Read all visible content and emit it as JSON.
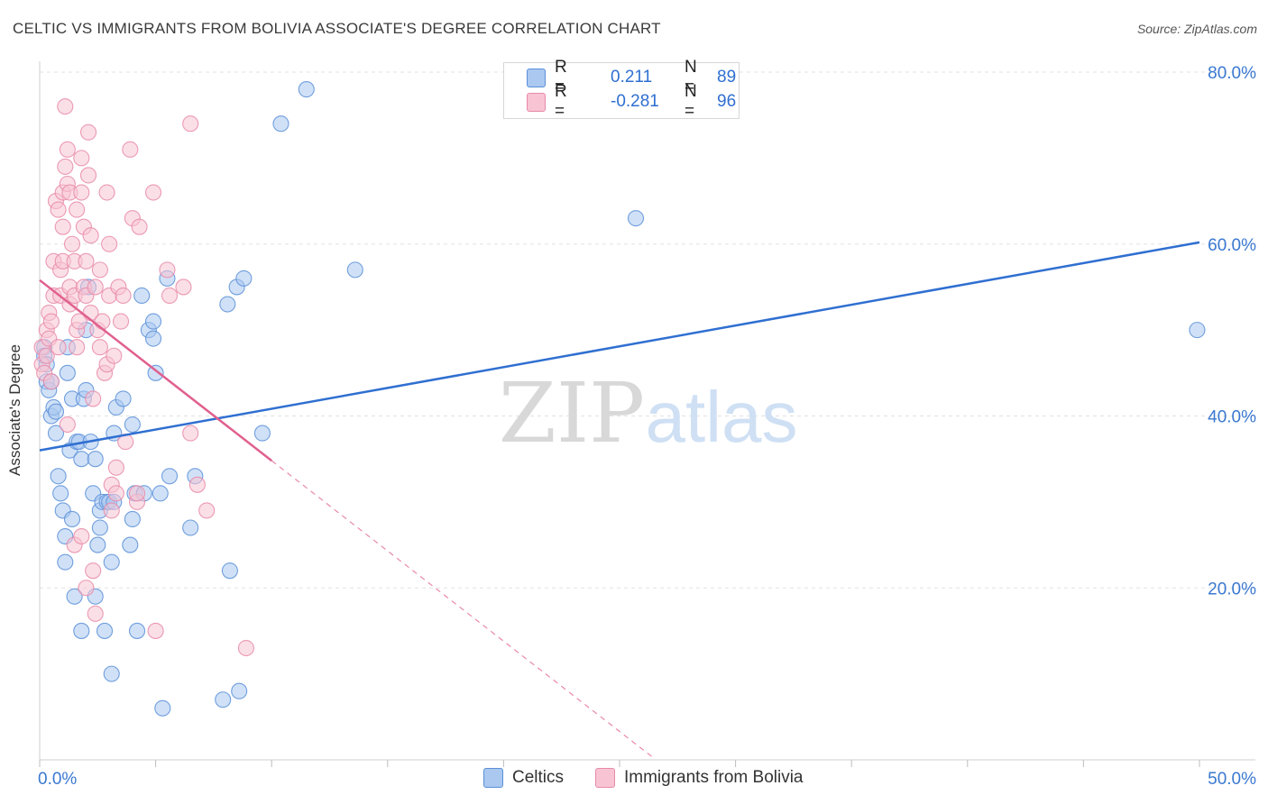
{
  "title": "CELTIC VS IMMIGRANTS FROM BOLIVIA ASSOCIATE'S DEGREE CORRELATION CHART",
  "source": "Source: ZipAtlas.com",
  "watermark": {
    "zip": "ZIP",
    "atlas": "atlas"
  },
  "legend_top": {
    "rows": [
      {
        "r_label": "R =",
        "r_value": "0.211",
        "n_label": "N =",
        "n_value": "89",
        "color": "#aac8f0",
        "border": "#5b8fd8"
      },
      {
        "r_label": "R =",
        "r_value": "-0.281",
        "n_label": "N =",
        "n_value": "96",
        "color": "#f8c4d4",
        "border": "#e889a8"
      }
    ]
  },
  "legend_bottom": [
    {
      "label": "Celtics",
      "color": "#aac8f0",
      "border": "#5b8fd8"
    },
    {
      "label": "Immigrants from Bolivia",
      "color": "#f8c4d4",
      "border": "#e889a8"
    }
  ],
  "chart_data": {
    "type": "scatter",
    "title": "CELTIC VS IMMIGRANTS FROM BOLIVIA ASSOCIATE'S DEGREE CORRELATION CHART",
    "xlabel": "",
    "ylabel": "Associate's Degree",
    "xlim": [
      0,
      50
    ],
    "ylim": [
      0,
      80
    ],
    "x_tick_labels": [
      "0.0%",
      "50.0%"
    ],
    "y_tick_labels": [
      "20.0%",
      "40.0%",
      "60.0%",
      "80.0%"
    ],
    "y_ticks": [
      20,
      40,
      60,
      80
    ],
    "grid": true,
    "series": [
      {
        "name": "Celtics",
        "color": "#5b8fd8",
        "fill": "#aac8f0",
        "trend": {
          "x0": 0,
          "y0": 36.0,
          "x1": 50,
          "y1": 60.2,
          "dash_from": null
        },
        "points": [
          [
            0.2,
            48
          ],
          [
            0.2,
            47
          ],
          [
            0.3,
            46
          ],
          [
            0.3,
            44
          ],
          [
            0.4,
            43
          ],
          [
            0.5,
            44
          ],
          [
            0.5,
            40
          ],
          [
            0.6,
            41
          ],
          [
            0.7,
            40.5
          ],
          [
            0.7,
            38
          ],
          [
            0.8,
            33
          ],
          [
            0.9,
            31
          ],
          [
            1.0,
            29
          ],
          [
            1.1,
            23
          ],
          [
            1.1,
            26
          ],
          [
            1.2,
            45
          ],
          [
            1.2,
            48
          ],
          [
            1.3,
            36
          ],
          [
            1.4,
            42
          ],
          [
            1.4,
            28
          ],
          [
            1.5,
            19
          ],
          [
            1.6,
            37
          ],
          [
            1.7,
            37
          ],
          [
            1.8,
            35
          ],
          [
            1.8,
            15
          ],
          [
            1.9,
            42
          ],
          [
            2.0,
            43
          ],
          [
            2.0,
            50
          ],
          [
            2.1,
            55
          ],
          [
            2.2,
            37
          ],
          [
            2.3,
            31
          ],
          [
            2.4,
            35
          ],
          [
            2.4,
            19
          ],
          [
            2.5,
            25
          ],
          [
            2.6,
            29
          ],
          [
            2.6,
            27
          ],
          [
            2.7,
            30
          ],
          [
            2.8,
            15
          ],
          [
            2.9,
            30
          ],
          [
            3.0,
            30
          ],
          [
            3.1,
            23
          ],
          [
            3.1,
            10
          ],
          [
            3.2,
            30
          ],
          [
            3.2,
            38
          ],
          [
            3.3,
            41
          ],
          [
            3.6,
            42
          ],
          [
            3.9,
            25
          ],
          [
            4.0,
            28
          ],
          [
            4.0,
            39
          ],
          [
            4.1,
            31
          ],
          [
            4.2,
            15
          ],
          [
            4.4,
            54
          ],
          [
            4.5,
            31
          ],
          [
            4.7,
            50
          ],
          [
            4.9,
            49
          ],
          [
            4.9,
            51
          ],
          [
            5.0,
            45
          ],
          [
            5.2,
            31
          ],
          [
            5.3,
            6
          ],
          [
            5.5,
            56
          ],
          [
            5.6,
            33
          ],
          [
            6.5,
            27
          ],
          [
            6.7,
            33
          ],
          [
            7.9,
            7
          ],
          [
            8.1,
            53
          ],
          [
            8.2,
            22
          ],
          [
            8.5,
            55
          ],
          [
            8.6,
            8
          ],
          [
            8.8,
            56
          ],
          [
            9.6,
            38
          ],
          [
            10.4,
            74
          ],
          [
            11.5,
            78
          ],
          [
            13.6,
            57
          ],
          [
            25.7,
            63
          ],
          [
            49.9,
            50
          ]
        ]
      },
      {
        "name": "Immigrants from Bolivia",
        "color": "#e889a8",
        "fill": "#f8c4d4",
        "trend": {
          "x0": 0,
          "y0": 55.8,
          "x1": 10,
          "y1": 34.8,
          "dash_to_x": 26.5
        },
        "points": [
          [
            0.1,
            48
          ],
          [
            0.1,
            46
          ],
          [
            0.2,
            45
          ],
          [
            0.3,
            50
          ],
          [
            0.3,
            47
          ],
          [
            0.4,
            52
          ],
          [
            0.4,
            49
          ],
          [
            0.5,
            51
          ],
          [
            0.5,
            44
          ],
          [
            0.6,
            54
          ],
          [
            0.6,
            58
          ],
          [
            0.7,
            65
          ],
          [
            0.8,
            64
          ],
          [
            0.8,
            48
          ],
          [
            0.9,
            57
          ],
          [
            0.9,
            54
          ],
          [
            1.0,
            66
          ],
          [
            1.0,
            62
          ],
          [
            1.0,
            58
          ],
          [
            1.1,
            76
          ],
          [
            1.1,
            69
          ],
          [
            1.2,
            71
          ],
          [
            1.2,
            67
          ],
          [
            1.2,
            39
          ],
          [
            1.3,
            66
          ],
          [
            1.3,
            55
          ],
          [
            1.3,
            53
          ],
          [
            1.4,
            60
          ],
          [
            1.5,
            58
          ],
          [
            1.5,
            54
          ],
          [
            1.5,
            25
          ],
          [
            1.6,
            64
          ],
          [
            1.6,
            50
          ],
          [
            1.6,
            48
          ],
          [
            1.7,
            51
          ],
          [
            1.8,
            70
          ],
          [
            1.8,
            66
          ],
          [
            1.8,
            26
          ],
          [
            1.9,
            62
          ],
          [
            1.9,
            55
          ],
          [
            2.0,
            58
          ],
          [
            2.0,
            54
          ],
          [
            2.0,
            20
          ],
          [
            2.1,
            73
          ],
          [
            2.1,
            68
          ],
          [
            2.2,
            61
          ],
          [
            2.2,
            52
          ],
          [
            2.3,
            42
          ],
          [
            2.3,
            22
          ],
          [
            2.4,
            55
          ],
          [
            2.4,
            17
          ],
          [
            2.5,
            50
          ],
          [
            2.6,
            57
          ],
          [
            2.6,
            48
          ],
          [
            2.7,
            51
          ],
          [
            2.8,
            45
          ],
          [
            2.9,
            66
          ],
          [
            2.9,
            46
          ],
          [
            3.0,
            60
          ],
          [
            3.0,
            54
          ],
          [
            3.1,
            32
          ],
          [
            3.1,
            29
          ],
          [
            3.2,
            47
          ],
          [
            3.3,
            34
          ],
          [
            3.3,
            31
          ],
          [
            3.4,
            55
          ],
          [
            3.5,
            51
          ],
          [
            3.6,
            54
          ],
          [
            3.7,
            37
          ],
          [
            3.9,
            71
          ],
          [
            4.0,
            63
          ],
          [
            4.2,
            30
          ],
          [
            4.2,
            31
          ],
          [
            4.3,
            62
          ],
          [
            4.9,
            66
          ],
          [
            5.0,
            15
          ],
          [
            5.5,
            57
          ],
          [
            5.6,
            54
          ],
          [
            6.2,
            55
          ],
          [
            6.5,
            74
          ],
          [
            6.5,
            38
          ],
          [
            6.8,
            32
          ],
          [
            7.2,
            29
          ],
          [
            8.9,
            13
          ]
        ]
      }
    ]
  }
}
